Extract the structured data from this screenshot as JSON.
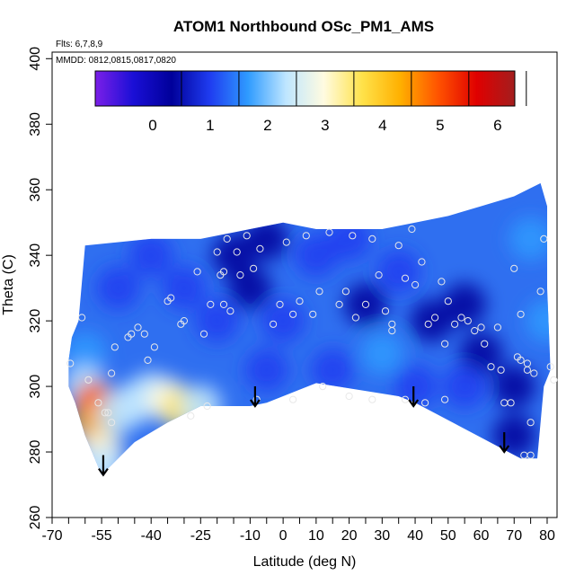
{
  "chart_data": {
    "type": "heatmap",
    "title": "ATOM1 Northbound OSc_PM1_AMS",
    "annotations": [
      "Flts: 6,7,8,9",
      "MMDD: 0812,0815,0817,0820"
    ],
    "xlabel": "Latitude (deg N)",
    "ylabel": "Theta (C)",
    "xlim": [
      -70,
      83
    ],
    "ylim": [
      260,
      402
    ],
    "x_ticks": [
      -70,
      -55,
      -40,
      -25,
      -10,
      0,
      10,
      20,
      30,
      40,
      50,
      60,
      70,
      80
    ],
    "x_minor_step": 5,
    "y_ticks": [
      260,
      280,
      300,
      320,
      340,
      360,
      380,
      400
    ],
    "colorbar": {
      "range": [
        -1,
        6.3
      ],
      "ticks": [
        0,
        1,
        2,
        3,
        4,
        5,
        6
      ],
      "colors": [
        "#7b1fe8",
        "#1a0fd6",
        "#00009a",
        "#1f3cf0",
        "#2f9bff",
        "#bfe6ff",
        "#fffbe0",
        "#ffe24a",
        "#ffb000",
        "#ff5200",
        "#e00000",
        "#a31e1e"
      ]
    },
    "field_cells": [
      [
        -60,
        310,
        1.5
      ],
      [
        -60,
        300,
        2.0
      ],
      [
        -57,
        295,
        4.8
      ],
      [
        -57,
        288,
        4.0
      ],
      [
        -55,
        280,
        3.2
      ],
      [
        -55,
        275,
        2.6
      ],
      [
        -50,
        292,
        2.5
      ],
      [
        -45,
        295,
        2.6
      ],
      [
        -40,
        298,
        2.3
      ],
      [
        -35,
        296,
        3.0
      ],
      [
        -30,
        293,
        3.4
      ],
      [
        -25,
        294,
        2.5
      ],
      [
        -50,
        330,
        1.2
      ],
      [
        -40,
        340,
        1.3
      ],
      [
        -30,
        330,
        0.9
      ],
      [
        -20,
        320,
        0.7
      ],
      [
        -15,
        340,
        0.4
      ],
      [
        -10,
        330,
        0.6
      ],
      [
        -5,
        345,
        0.3
      ],
      [
        0,
        320,
        0.9
      ],
      [
        10,
        340,
        0.7
      ],
      [
        20,
        345,
        0.9
      ],
      [
        25,
        325,
        0.0
      ],
      [
        30,
        310,
        1.8
      ],
      [
        35,
        335,
        0.8
      ],
      [
        45,
        320,
        0.6
      ],
      [
        55,
        325,
        0.2
      ],
      [
        60,
        310,
        0.3
      ],
      [
        70,
        300,
        0.0
      ],
      [
        75,
        345,
        1.6
      ],
      [
        70,
        285,
        0.1
      ],
      [
        80,
        320,
        1.5
      ],
      [
        -5,
        305,
        1.2
      ],
      [
        15,
        305,
        1.3
      ],
      [
        40,
        300,
        1.0
      ],
      [
        55,
        300,
        0.8
      ]
    ],
    "points": [
      [
        -64.5,
        307
      ],
      [
        -61,
        321
      ],
      [
        -59,
        302
      ],
      [
        -56,
        295
      ],
      [
        -53,
        292
      ],
      [
        -52,
        304
      ],
      [
        -47,
        315
      ],
      [
        -46,
        316
      ],
      [
        -44,
        318
      ],
      [
        -42,
        316
      ],
      [
        -41,
        308
      ],
      [
        -39,
        312
      ],
      [
        -35,
        326
      ],
      [
        -34,
        327
      ],
      [
        -31,
        319
      ],
      [
        -30,
        320
      ],
      [
        -26,
        335
      ],
      [
        -24,
        316
      ],
      [
        -22,
        325
      ],
      [
        -20,
        341
      ],
      [
        -19,
        334
      ],
      [
        -18,
        335
      ],
      [
        -18,
        325
      ],
      [
        -17,
        345
      ],
      [
        -16,
        323
      ],
      [
        -14,
        341
      ],
      [
        -13,
        334
      ],
      [
        -11,
        346
      ],
      [
        -9,
        336
      ],
      [
        -7,
        342
      ],
      [
        -3,
        319
      ],
      [
        -1,
        325
      ],
      [
        1,
        344
      ],
      [
        3,
        322
      ],
      [
        5,
        326
      ],
      [
        7,
        346
      ],
      [
        9,
        322
      ],
      [
        11,
        329
      ],
      [
        14,
        347
      ],
      [
        17,
        325
      ],
      [
        19,
        329
      ],
      [
        21,
        346
      ],
      [
        22,
        321
      ],
      [
        25,
        325
      ],
      [
        27,
        345
      ],
      [
        29,
        334
      ],
      [
        31,
        323
      ],
      [
        33,
        319
      ],
      [
        35,
        343
      ],
      [
        37,
        333
      ],
      [
        39,
        348
      ],
      [
        40,
        331
      ],
      [
        42,
        338
      ],
      [
        44,
        319
      ],
      [
        46,
        321
      ],
      [
        48,
        332
      ],
      [
        49,
        313
      ],
      [
        50,
        326
      ],
      [
        52,
        319
      ],
      [
        54,
        321
      ],
      [
        56,
        320
      ],
      [
        58,
        317
      ],
      [
        60,
        318
      ],
      [
        61,
        313
      ],
      [
        63,
        306
      ],
      [
        65,
        318
      ],
      [
        66,
        305
      ],
      [
        67,
        295
      ],
      [
        69,
        295
      ],
      [
        70,
        336
      ],
      [
        71,
        309
      ],
      [
        72,
        308
      ],
      [
        72,
        322
      ],
      [
        74,
        307
      ],
      [
        74,
        305
      ],
      [
        75,
        289
      ],
      [
        76,
        304
      ],
      [
        78,
        329
      ],
      [
        79,
        345
      ],
      [
        81,
        306
      ],
      [
        82,
        302
      ],
      [
        -54,
        292
      ],
      [
        -52,
        289
      ],
      [
        -28,
        291
      ],
      [
        -23,
        294
      ],
      [
        -8,
        296
      ],
      [
        3,
        296
      ],
      [
        12,
        300
      ],
      [
        20,
        297
      ],
      [
        27,
        296
      ],
      [
        33,
        317
      ],
      [
        37,
        296
      ],
      [
        43,
        295
      ],
      [
        49,
        296
      ],
      [
        73,
        279
      ],
      [
        75,
        279
      ],
      [
        -51,
        312
      ]
    ],
    "arrows": [
      [
        -54.5,
        273
      ],
      [
        -8.5,
        294
      ],
      [
        39.5,
        294
      ],
      [
        67,
        280
      ]
    ],
    "domain_outline": [
      [
        -65,
        308
      ],
      [
        -64,
        315
      ],
      [
        -62,
        320
      ],
      [
        -60,
        343
      ],
      [
        -40,
        345
      ],
      [
        -25,
        345
      ],
      [
        -10,
        348
      ],
      [
        0,
        350
      ],
      [
        10,
        348
      ],
      [
        20,
        348
      ],
      [
        30,
        348
      ],
      [
        40,
        350
      ],
      [
        50,
        352
      ],
      [
        60,
        355
      ],
      [
        70,
        358
      ],
      [
        78,
        362
      ],
      [
        80,
        355
      ],
      [
        80,
        330
      ],
      [
        81,
        305
      ],
      [
        79,
        300
      ],
      [
        77,
        278
      ],
      [
        72,
        278
      ],
      [
        40,
        295
      ],
      [
        35,
        297
      ],
      [
        10,
        301
      ],
      [
        -5,
        295
      ],
      [
        -10,
        294
      ],
      [
        -25,
        294
      ],
      [
        -35,
        289
      ],
      [
        -45,
        283
      ],
      [
        -55,
        273
      ],
      [
        -60,
        285
      ],
      [
        -63,
        295
      ],
      [
        -65,
        300
      ]
    ]
  }
}
